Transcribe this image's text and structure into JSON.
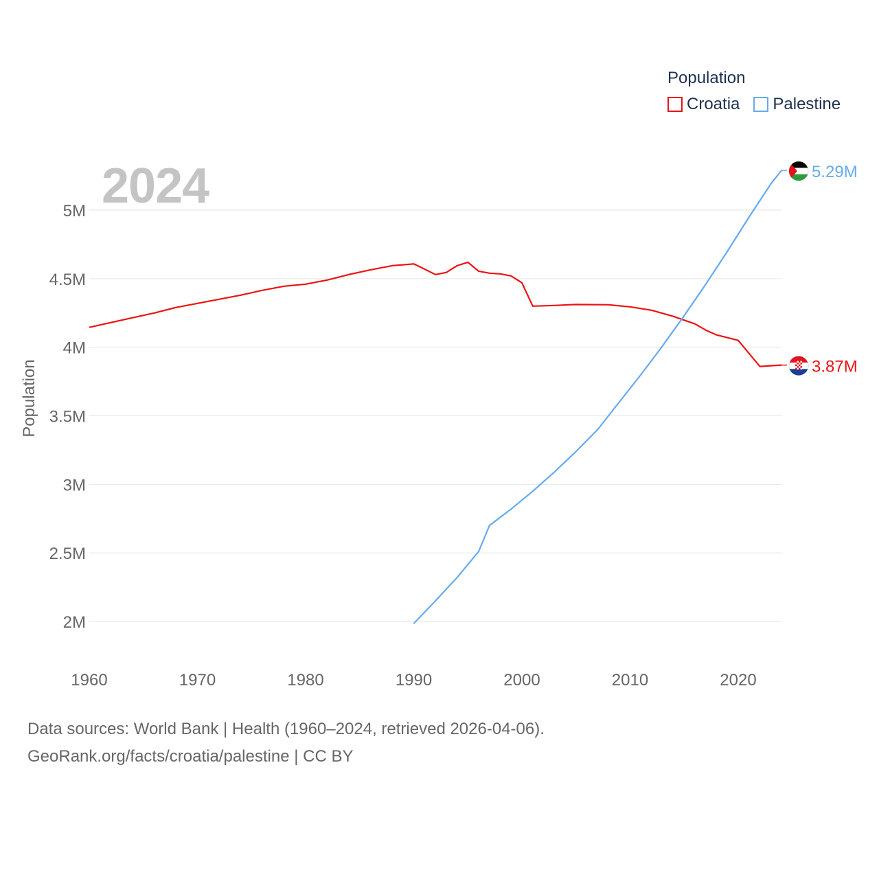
{
  "legend": {
    "title": "Population",
    "items": [
      {
        "label": "Croatia",
        "color": "#ee1111"
      },
      {
        "label": "Palestine",
        "color": "#66aaee"
      }
    ]
  },
  "year_label": "2024",
  "footer": {
    "line1": "Data sources: World Bank | Health (1960–2024, retrieved 2026-04-06).",
    "line2": "GeoRank.org/facts/croatia/palestine | CC BY"
  },
  "chart_data": {
    "type": "line",
    "title": "",
    "xlabel": "",
    "ylabel": "Population",
    "xlim": [
      1960,
      2024
    ],
    "ylim": [
      1800000,
      5300000
    ],
    "x_ticks": [
      1960,
      1970,
      1980,
      1990,
      2000,
      2010,
      2020
    ],
    "y_ticks": [
      {
        "value": 2000000,
        "label": "2M"
      },
      {
        "value": 2500000,
        "label": "2.5M"
      },
      {
        "value": 3000000,
        "label": "3M"
      },
      {
        "value": 3500000,
        "label": "3.5M"
      },
      {
        "value": 4000000,
        "label": "4M"
      },
      {
        "value": 4500000,
        "label": "4.5M"
      },
      {
        "value": 5000000,
        "label": "5M"
      }
    ],
    "series": [
      {
        "name": "Croatia",
        "color": "#ee1111",
        "end_label": "3.87M",
        "points": [
          [
            1960,
            4145000
          ],
          [
            1962,
            4180000
          ],
          [
            1964,
            4215000
          ],
          [
            1966,
            4250000
          ],
          [
            1968,
            4290000
          ],
          [
            1970,
            4320000
          ],
          [
            1972,
            4350000
          ],
          [
            1974,
            4380000
          ],
          [
            1976,
            4415000
          ],
          [
            1978,
            4445000
          ],
          [
            1980,
            4460000
          ],
          [
            1982,
            4490000
          ],
          [
            1984,
            4530000
          ],
          [
            1986,
            4565000
          ],
          [
            1988,
            4595000
          ],
          [
            1990,
            4608000
          ],
          [
            1991,
            4570000
          ],
          [
            1992,
            4530000
          ],
          [
            1993,
            4545000
          ],
          [
            1994,
            4595000
          ],
          [
            1995,
            4620000
          ],
          [
            1996,
            4555000
          ],
          [
            1997,
            4540000
          ],
          [
            1998,
            4535000
          ],
          [
            1999,
            4520000
          ],
          [
            2000,
            4470000
          ],
          [
            2001,
            4300000
          ],
          [
            2003,
            4305000
          ],
          [
            2005,
            4312000
          ],
          [
            2008,
            4310000
          ],
          [
            2010,
            4295000
          ],
          [
            2012,
            4270000
          ],
          [
            2014,
            4225000
          ],
          [
            2016,
            4170000
          ],
          [
            2017,
            4125000
          ],
          [
            2018,
            4090000
          ],
          [
            2020,
            4050000
          ],
          [
            2022,
            3860000
          ],
          [
            2024,
            3870000
          ]
        ]
      },
      {
        "name": "Palestine",
        "color": "#66aaee",
        "end_label": "5.29M",
        "points": [
          [
            1990,
            1985000
          ],
          [
            1992,
            2150000
          ],
          [
            1994,
            2320000
          ],
          [
            1996,
            2510000
          ],
          [
            1997,
            2700000
          ],
          [
            1999,
            2820000
          ],
          [
            2001,
            2950000
          ],
          [
            2003,
            3090000
          ],
          [
            2005,
            3240000
          ],
          [
            2007,
            3400000
          ],
          [
            2009,
            3600000
          ],
          [
            2011,
            3800000
          ],
          [
            2013,
            4010000
          ],
          [
            2015,
            4230000
          ],
          [
            2017,
            4460000
          ],
          [
            2019,
            4700000
          ],
          [
            2021,
            4950000
          ],
          [
            2023,
            5190000
          ],
          [
            2024,
            5290000
          ]
        ]
      }
    ]
  }
}
